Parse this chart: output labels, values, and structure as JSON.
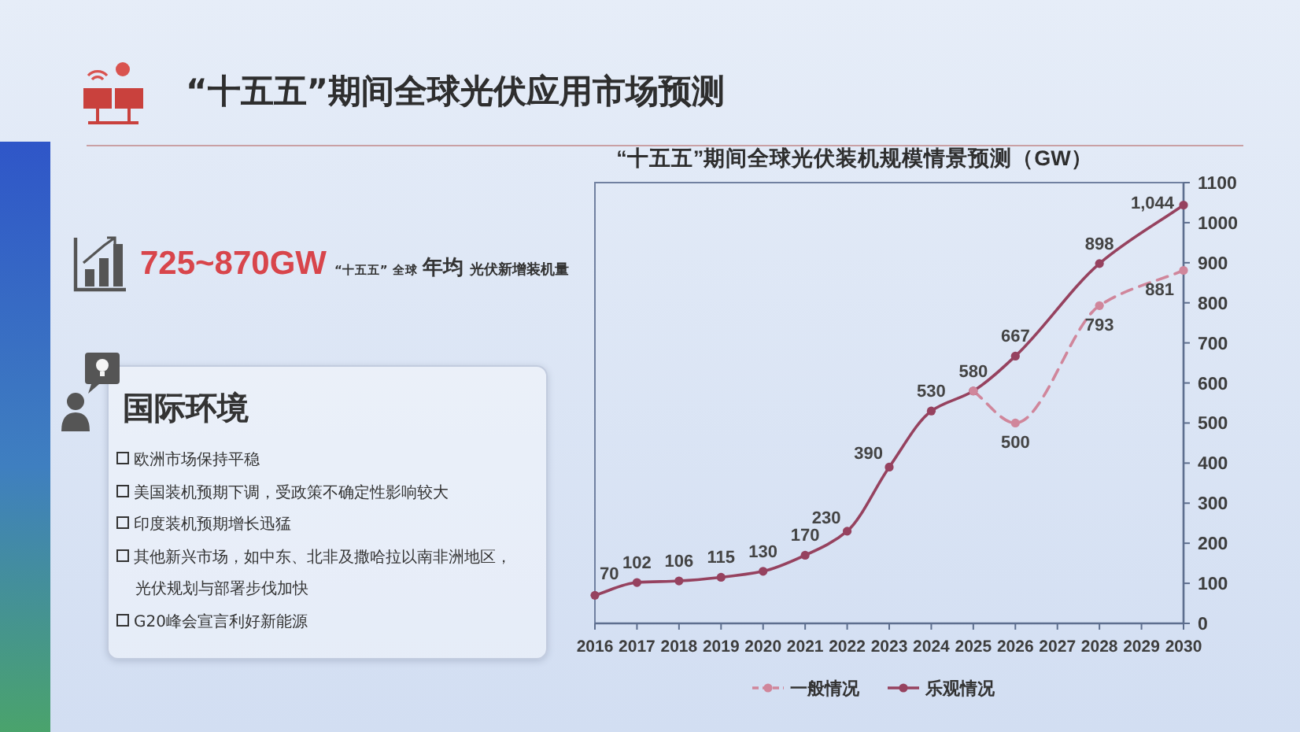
{
  "chart_data": [
    {
      "type": "other",
      "title": "“十五五”期间全球光伏应用市场预测"
    },
    {
      "type": "other",
      "annotations": [
        "725~870GW",
        "“十五五”",
        "全球",
        "年均",
        "光伏新增装机量"
      ]
    },
    {
      "type": "line",
      "title": "“十五五”期间全球光伏装机规模情景预测（GW）",
      "xlim": [
        2016,
        2030
      ],
      "xticks": [
        2016,
        2017,
        2018,
        2019,
        2020,
        2021,
        2022,
        2023,
        2024,
        2025,
        2026,
        2027,
        2028,
        2029,
        2030
      ],
      "ylim": [
        0,
        1100
      ],
      "yticks": [
        0,
        100,
        200,
        300,
        400,
        500,
        600,
        700,
        800,
        900,
        1000,
        1100
      ],
      "legend": "bottom",
      "series": [
        {
          "name": "一般情况",
          "color": "#d0869b",
          "line_style": "dashed",
          "marker": "circle",
          "x": [
            2025,
            2026,
            2028,
            2030
          ],
          "values": [
            580,
            500,
            793,
            881
          ],
          "value_labels": [
            null,
            "500",
            "793",
            "881"
          ]
        },
        {
          "name": "乐观情况",
          "color": "#96425f",
          "line_style": "solid",
          "marker": "circle",
          "x": [
            2016,
            2017,
            2018,
            2019,
            2020,
            2021,
            2022,
            2023,
            2024,
            2025,
            2026,
            2028,
            2030
          ],
          "values": [
            70,
            102,
            106,
            115,
            130,
            170,
            230,
            390,
            530,
            580,
            667,
            898,
            1044
          ],
          "value_labels": [
            "70",
            "102",
            "106",
            "115",
            "130",
            "170",
            "230",
            "390",
            "530",
            "580",
            "667",
            "898",
            "1,044"
          ]
        }
      ]
    },
    {
      "type": "other",
      "title": "国际环境",
      "annotations": [
        "欧洲市场保持平稳",
        "美国装机预期下调，受政策不确定性影响较大",
        "印度装机预期增长迅猛",
        "其他新兴市场，如中东、北非及撒哈拉以南非洲地区，光伏规划与部署步伐加快",
        "G20峰会宣言利好新能源"
      ]
    }
  ]
}
